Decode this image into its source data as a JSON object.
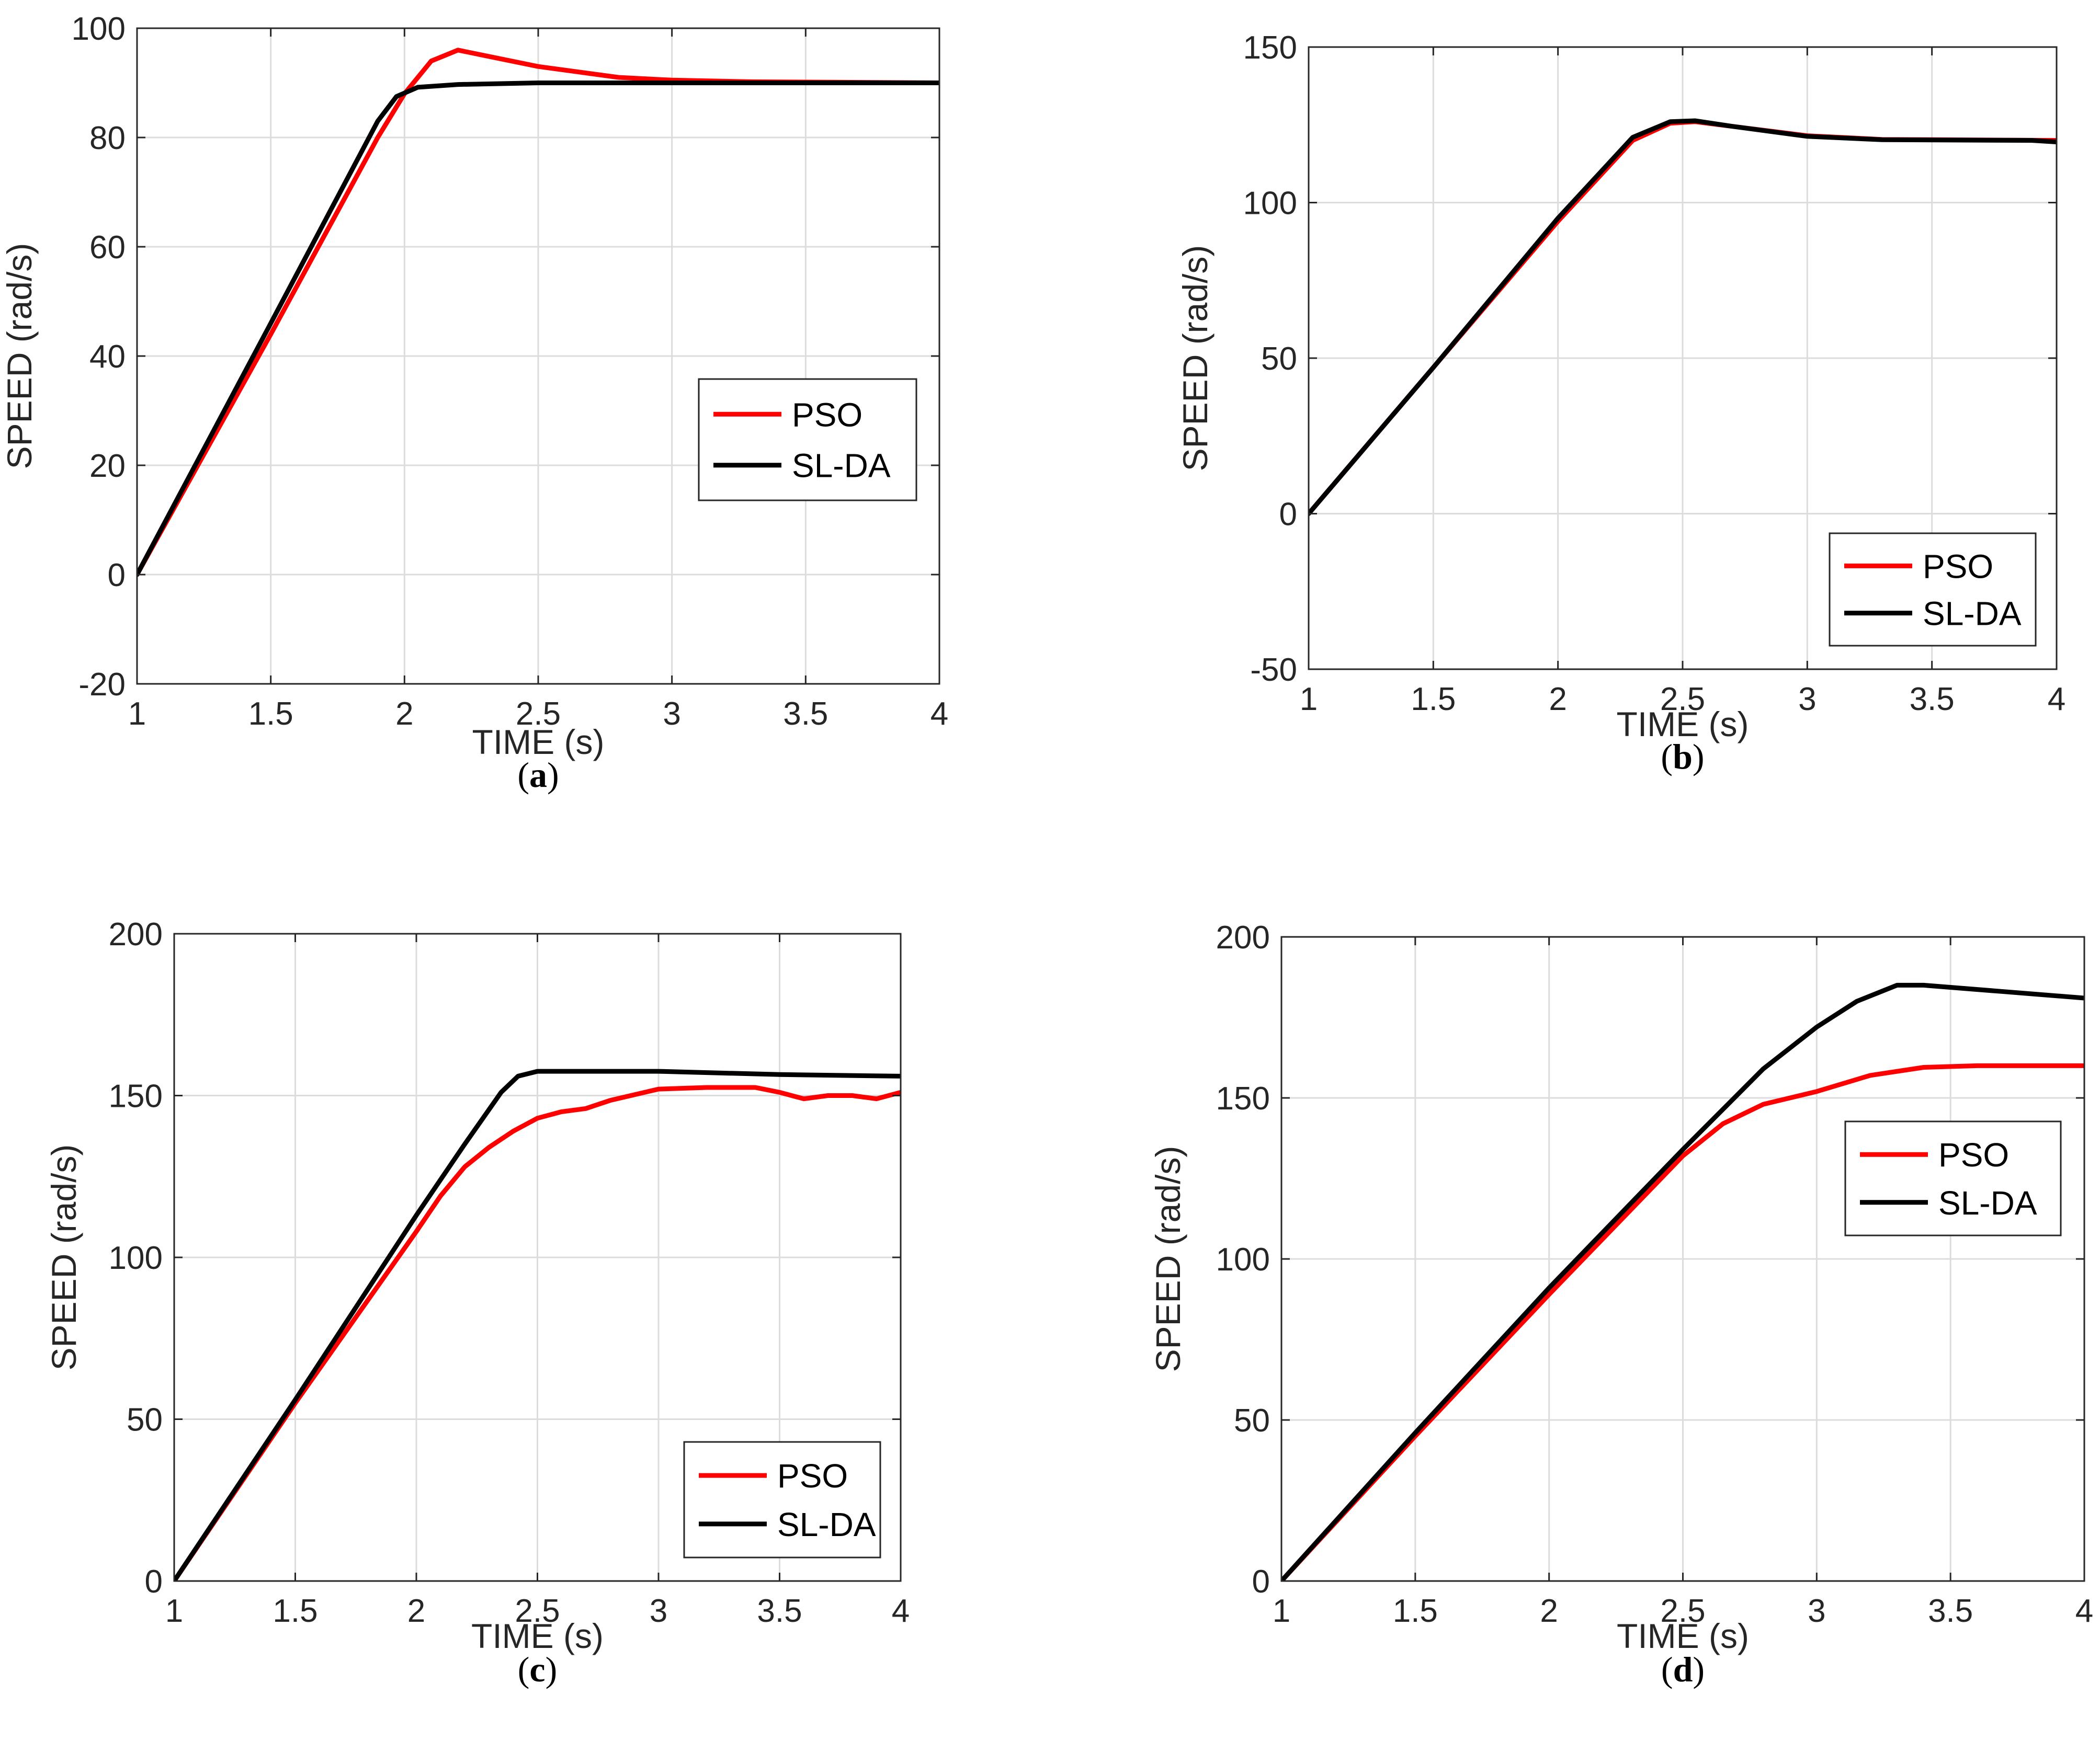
{
  "colors": {
    "pso": "#ff0000",
    "slda": "#000000",
    "grid": "#dcdcdc",
    "axis": "#262626"
  },
  "chart_data": [
    {
      "type": "line",
      "panel_label": "a",
      "xlabel": "TIME (s)",
      "ylabel": "SPEED (rad/s)",
      "xlim": [
        1,
        4
      ],
      "ylim": [
        -20,
        100
      ],
      "xticks": [
        1,
        1.5,
        2,
        2.5,
        3,
        3.5,
        4
      ],
      "xtick_labels": [
        "1",
        "1.5",
        "2",
        "2.5",
        "3",
        "3.5",
        "4"
      ],
      "yticks": [
        -20,
        0,
        20,
        40,
        60,
        80,
        100
      ],
      "ytick_labels": [
        "-20",
        "0",
        "20",
        "40",
        "60",
        "80",
        "100"
      ],
      "legend_position": "center-right",
      "series": [
        {
          "name": "PSO",
          "x": [
            1,
            1.5,
            1.9,
            2.0,
            2.1,
            2.2,
            2.3,
            2.5,
            2.8,
            3.0,
            3.3,
            4.0
          ],
          "y": [
            0,
            44,
            80,
            88,
            94,
            96,
            95,
            93,
            91,
            90.5,
            90.2,
            90
          ]
        },
        {
          "name": "SL-DA",
          "x": [
            1,
            1.5,
            1.9,
            1.97,
            2.05,
            2.2,
            2.5,
            3.0,
            4.0
          ],
          "y": [
            0,
            46,
            83,
            87.5,
            89.2,
            89.7,
            90,
            90,
            90
          ]
        }
      ]
    },
    {
      "type": "line",
      "panel_label": "b",
      "xlabel": "TIME (s)",
      "ylabel": "SPEED (rad/s)",
      "xlim": [
        1,
        4
      ],
      "ylim": [
        -50,
        150
      ],
      "xticks": [
        1,
        1.5,
        2,
        2.5,
        3,
        3.5,
        4
      ],
      "xtick_labels": [
        "1",
        "1.5",
        "2",
        "2.5",
        "3",
        "3.5",
        "4"
      ],
      "yticks": [
        -50,
        0,
        50,
        100,
        150
      ],
      "ytick_labels": [
        "-50",
        "0",
        "50",
        "100",
        "150"
      ],
      "legend_position": "bottom-right",
      "series": [
        {
          "name": "PSO",
          "x": [
            1,
            1.5,
            2.0,
            2.3,
            2.45,
            2.55,
            2.7,
            3.0,
            3.3,
            4.0
          ],
          "y": [
            0,
            47,
            94,
            120,
            125.5,
            126,
            124.5,
            121.5,
            120.3,
            120
          ]
        },
        {
          "name": "SL-DA",
          "x": [
            1,
            1.5,
            2.0,
            2.3,
            2.45,
            2.55,
            2.7,
            3.0,
            3.3,
            3.9,
            4.0
          ],
          "y": [
            0,
            47,
            95,
            121,
            126,
            126.3,
            124.5,
            121.3,
            120.2,
            120,
            119.5
          ]
        }
      ]
    },
    {
      "type": "line",
      "panel_label": "c",
      "xlabel": "TIME (s)",
      "ylabel": "SPEED (rad/s)",
      "xlim": [
        1,
        4
      ],
      "ylim": [
        0,
        200
      ],
      "xticks": [
        1,
        1.5,
        2,
        2.5,
        3,
        3.5,
        4
      ],
      "xtick_labels": [
        "1",
        "1.5",
        "2",
        "2.5",
        "3",
        "3.5",
        "4"
      ],
      "yticks": [
        0,
        50,
        100,
        150,
        200
      ],
      "ytick_labels": [
        "0",
        "50",
        "100",
        "150",
        "200"
      ],
      "legend_position": "bottom-right",
      "series": [
        {
          "name": "PSO",
          "x": [
            1,
            1.5,
            2.0,
            2.1,
            2.2,
            2.3,
            2.4,
            2.5,
            2.6,
            2.7,
            2.8,
            3.0,
            3.2,
            3.4,
            3.5,
            3.6,
            3.7,
            3.8,
            3.9,
            4.0
          ],
          "y": [
            0,
            55,
            108,
            119,
            128,
            134,
            139,
            143,
            145,
            146,
            148.5,
            152,
            152.5,
            152.5,
            151,
            149,
            150,
            150,
            149,
            151
          ]
        },
        {
          "name": "SL-DA",
          "x": [
            1,
            1.5,
            2.0,
            2.2,
            2.35,
            2.42,
            2.5,
            2.8,
            3.0,
            3.5,
            4.0
          ],
          "y": [
            0,
            56,
            113,
            135,
            151,
            156,
            157.5,
            157.5,
            157.5,
            156.5,
            156
          ]
        }
      ]
    },
    {
      "type": "line",
      "panel_label": "d",
      "xlabel": "TIME (s)",
      "ylabel": "SPEED (rad/s)",
      "xlim": [
        1,
        4
      ],
      "ylim": [
        0,
        200
      ],
      "xticks": [
        1,
        1.5,
        2,
        2.5,
        3,
        3.5,
        4
      ],
      "xtick_labels": [
        "1",
        "1.5",
        "2",
        "2.5",
        "3",
        "3.5",
        "4"
      ],
      "yticks": [
        0,
        50,
        100,
        150,
        200
      ],
      "ytick_labels": [
        "0",
        "50",
        "100",
        "150",
        "200"
      ],
      "legend_position": "top-right",
      "series": [
        {
          "name": "PSO",
          "x": [
            1,
            1.5,
            2.0,
            2.5,
            2.65,
            2.8,
            3.0,
            3.2,
            3.4,
            3.6,
            4.0
          ],
          "y": [
            0,
            45,
            89,
            132,
            142,
            148,
            152,
            157,
            159.5,
            160,
            160
          ]
        },
        {
          "name": "SL-DA",
          "x": [
            1,
            1.5,
            2.0,
            2.5,
            2.8,
            3.0,
            3.15,
            3.3,
            3.4,
            3.7,
            4.0
          ],
          "y": [
            0,
            46,
            91,
            134,
            159,
            172,
            180,
            185,
            185,
            183,
            181
          ]
        }
      ]
    }
  ]
}
